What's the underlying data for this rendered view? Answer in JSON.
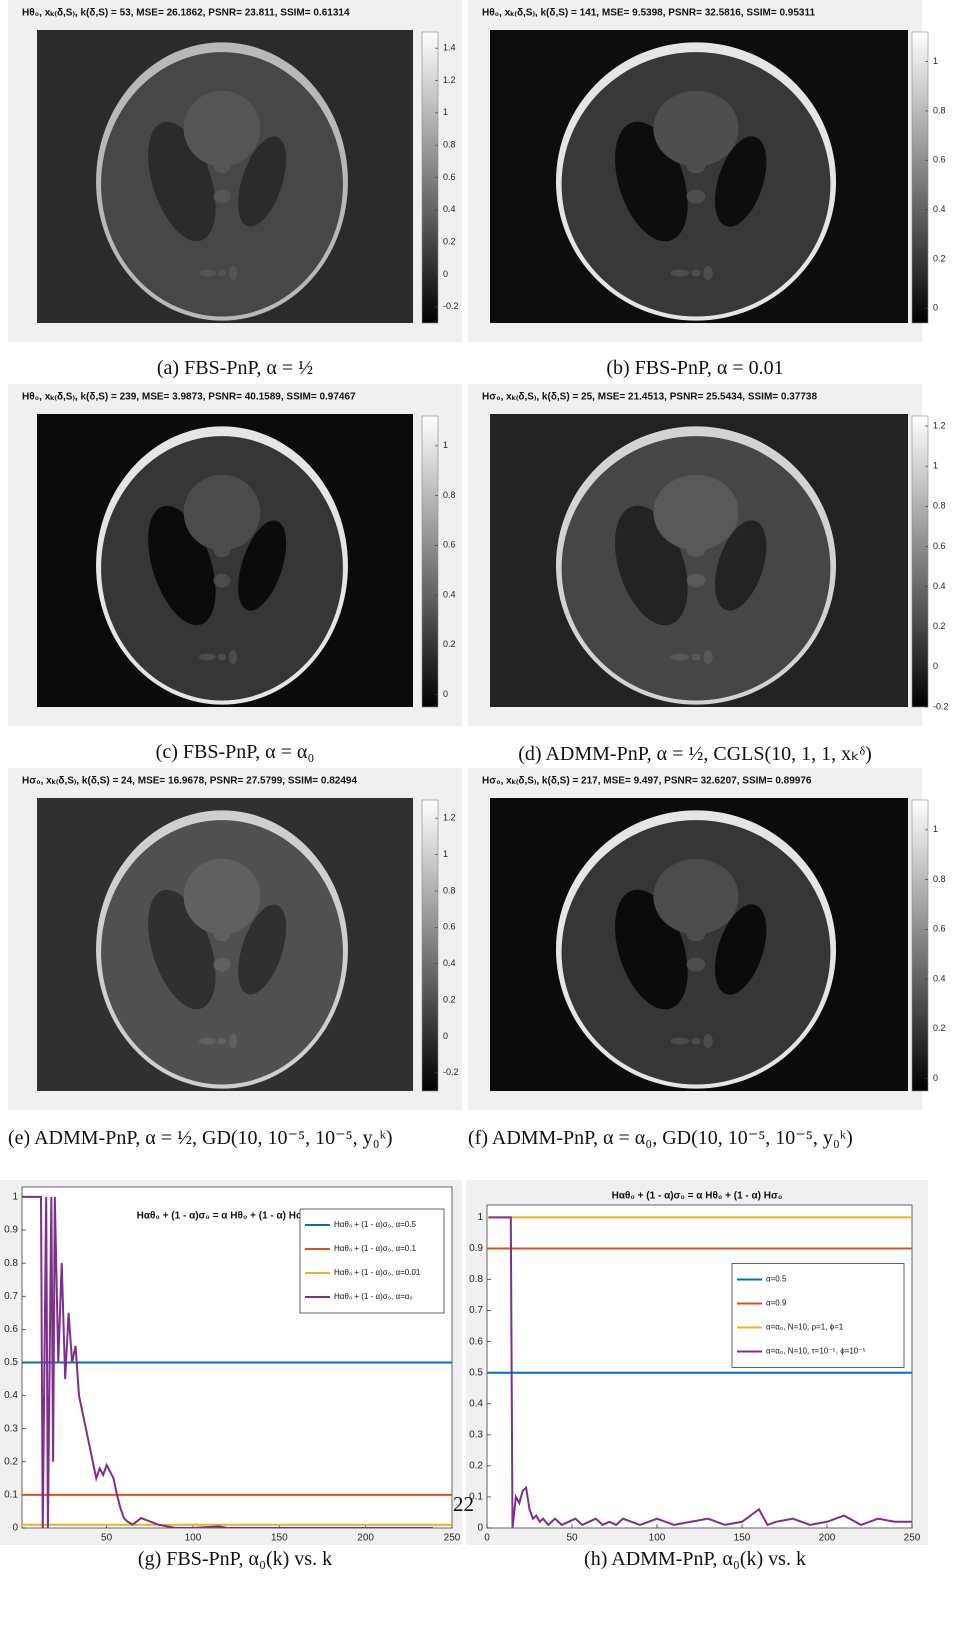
{
  "panels": [
    {
      "title": "Hθ₀, xₖ₍δ,S₎, k(δ,S) = 53, MSE= 26.1862, PSNR= 23.811, SSIM= 0.61314",
      "caption": "(a) FBS-PnP, α = ½",
      "colorbar": {
        "lim": [
          -0.3,
          1.5
        ],
        "ticks": [
          -0.2,
          0,
          0.2,
          0.4,
          0.6,
          0.8,
          1,
          1.2,
          1.4
        ]
      }
    },
    {
      "title": "Hθ₀, xₖ₍δ,S₎, k(δ,S) = 141, MSE= 9.5398, PSNR= 32.5816, SSIM= 0.95311",
      "caption": "(b) FBS-PnP, α = 0.01",
      "colorbar": {
        "lim": [
          -0.06,
          1.12
        ],
        "ticks": [
          0,
          0.2,
          0.4,
          0.6,
          0.8,
          1
        ]
      }
    },
    {
      "title": "Hθ₀, xₖ₍δ,S₎, k(δ,S) = 239, MSE= 3.9873, PSNR= 40.1589, SSIM= 0.97467",
      "caption": "(c) FBS-PnP, α = α₀",
      "colorbar": {
        "lim": [
          -0.05,
          1.12
        ],
        "ticks": [
          0,
          0.2,
          0.4,
          0.6,
          0.8,
          1
        ]
      }
    },
    {
      "title": "Hσ₀, xₖ₍δ,S₎, k(δ,S) = 25, MSE= 21.4513, PSNR= 25.5434, SSIM= 0.37738",
      "caption": "(d) ADMM-PnP, α = ½, CGLS(10, 1, 1, xₖᵟ)",
      "colorbar": {
        "lim": [
          -0.2,
          1.25
        ],
        "ticks": [
          -0.2,
          0,
          0.2,
          0.4,
          0.6,
          0.8,
          1,
          1.2
        ]
      }
    },
    {
      "title": "Hσ₀, xₖ₍δ,S₎, k(δ,S) = 24, MSE= 16.9678, PSNR= 27.5799, SSIM= 0.82494",
      "caption": "(e) ADMM-PnP, α = ½, GD(10, 10⁻⁵, 10⁻⁵, y₀ᵏ)",
      "colorbar": {
        "lim": [
          -0.3,
          1.3
        ],
        "ticks": [
          -0.2,
          0,
          0.2,
          0.4,
          0.6,
          0.8,
          1,
          1.2
        ]
      }
    },
    {
      "title": "Hσ₀, xₖ₍δ,S₎, k(δ,S) = 217, MSE= 9.497, PSNR= 32.6207, SSIM= 0.89976",
      "caption": "(f) ADMM-PnP, α = α₀, GD(10, 10⁻⁵, 10⁻⁵, y₀ᵏ)",
      "colorbar": {
        "lim": [
          -0.05,
          1.12
        ],
        "ticks": [
          0,
          0.2,
          0.4,
          0.6,
          0.8,
          1
        ]
      }
    }
  ],
  "chart_data": [
    {
      "type": "line",
      "title": "Hαθ₀ + (1 - α)σ₀ = α Hθ₀ + (1 - α) Hσ₀",
      "caption": "(g) FBS-PnP, α₀(k) vs. k",
      "xlim": [
        1,
        250
      ],
      "xticks": [
        50,
        100,
        150,
        200,
        250
      ],
      "ylim": [
        0,
        1.03
      ],
      "yticks": [
        0,
        0.1,
        0.2,
        0.3,
        0.4,
        0.5,
        0.6,
        0.7,
        0.8,
        0.9,
        1
      ],
      "legend": "upper right",
      "series": [
        {
          "name": "Hαθ₀ + (1 - α)σ₀, α=0.5",
          "color": "#0072bd",
          "x": [
            1,
            250
          ],
          "values": [
            0.5,
            0.5
          ]
        },
        {
          "name": "Hαθ₀ + (1 - α)σ₀, α=0.1",
          "color": "#d95319",
          "x": [
            1,
            250
          ],
          "values": [
            0.1,
            0.1
          ]
        },
        {
          "name": "Hαθ₀ + (1 - α)σ₀, α=0.01",
          "color": "#edb120",
          "x": [
            1,
            250
          ],
          "values": [
            0.01,
            0.01
          ]
        },
        {
          "name": "Hαθ₀ + (1 - α)σ₀, α=α₀",
          "color": "#7e2f8e",
          "x": [
            1,
            12,
            13,
            15,
            16,
            18,
            19,
            20,
            22,
            24,
            26,
            28,
            30,
            32,
            34,
            36,
            38,
            40,
            42,
            44,
            46,
            48,
            50,
            52,
            54,
            56,
            58,
            60,
            62,
            65,
            70,
            75,
            80,
            85,
            90,
            100,
            115,
            120,
            239
          ],
          "values": [
            1,
            1,
            0,
            1,
            0,
            1,
            0.2,
            1,
            0.5,
            0.8,
            0.45,
            0.65,
            0.5,
            0.55,
            0.4,
            0.35,
            0.3,
            0.25,
            0.2,
            0.15,
            0.18,
            0.16,
            0.19,
            0.17,
            0.15,
            0.1,
            0.06,
            0.03,
            0.02,
            0.01,
            0.03,
            0.02,
            0.01,
            0.005,
            0,
            0,
            0.005,
            0,
            0
          ]
        }
      ]
    },
    {
      "type": "line",
      "title": "Hαθ₀ + (1 - α)σ₀ = α Hθ₀ + (1 - α) Hσ₀",
      "caption": "(h) ADMM-PnP, α₀(k) vs. k",
      "xlim": [
        0,
        250
      ],
      "xticks": [
        0,
        50,
        100,
        150,
        200,
        250
      ],
      "ylim": [
        0,
        1.04
      ],
      "yticks": [
        0,
        0.1,
        0.2,
        0.3,
        0.4,
        0.5,
        0.6,
        0.7,
        0.8,
        0.9,
        1
      ],
      "legend": "center right",
      "series": [
        {
          "name": "α=0.5",
          "color": "#0072bd",
          "x": [
            0,
            250
          ],
          "values": [
            0.5,
            0.5
          ]
        },
        {
          "name": "α=0.9",
          "color": "#d95319",
          "x": [
            0,
            250
          ],
          "values": [
            0.9,
            0.9
          ]
        },
        {
          "name": "α=α₀, N=10, ρ=1, ϕ=1",
          "color": "#edb120",
          "x": [
            0,
            250
          ],
          "values": [
            1,
            1
          ]
        },
        {
          "name": "α=α₀, N=10, τ=10⁻⁵, ϕ=10⁻⁵",
          "color": "#7e2f8e",
          "x": [
            1,
            14,
            15,
            17,
            19,
            21,
            23,
            25,
            27,
            29,
            31,
            33,
            36,
            40,
            44,
            48,
            52,
            56,
            60,
            64,
            68,
            72,
            76,
            80,
            85,
            90,
            95,
            100,
            110,
            120,
            130,
            140,
            150,
            160,
            165,
            170,
            180,
            190,
            200,
            210,
            220,
            230,
            240,
            250
          ],
          "values": [
            1,
            1,
            0,
            0.1,
            0.08,
            0.12,
            0.13,
            0.06,
            0.03,
            0.04,
            0.02,
            0.03,
            0.01,
            0.03,
            0.01,
            0.02,
            0.03,
            0.01,
            0.02,
            0.03,
            0.01,
            0.02,
            0.01,
            0.03,
            0.02,
            0.01,
            0.02,
            0.03,
            0.01,
            0.02,
            0.03,
            0.01,
            0.02,
            0.06,
            0.01,
            0.02,
            0.03,
            0.01,
            0.02,
            0.04,
            0.01,
            0.03,
            0.02,
            0.02
          ]
        }
      ]
    }
  ],
  "page_number": "22"
}
